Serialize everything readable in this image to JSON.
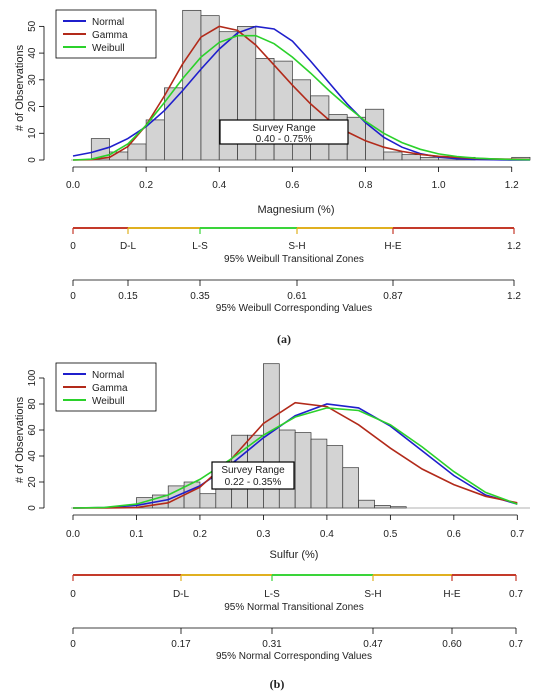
{
  "panels": [
    {
      "panel_label": "(a)",
      "chart_data": {
        "type": "bar",
        "title": "",
        "xlabel": "Magnesium (%)",
        "ylabel": "# of Observations",
        "xlim": [
          0.0,
          1.25
        ],
        "ylim": [
          0,
          55
        ],
        "xticks": [
          "0.0",
          "0.2",
          "0.4",
          "0.6",
          "0.8",
          "1.0",
          "1.2"
        ],
        "yticks": [
          "0",
          "10",
          "20",
          "30",
          "40",
          "50"
        ],
        "bin_width": 0.05,
        "bin_starts": [
          0.05,
          0.1,
          0.15,
          0.2,
          0.25,
          0.3,
          0.35,
          0.4,
          0.45,
          0.5,
          0.55,
          0.6,
          0.65,
          0.7,
          0.75,
          0.8,
          0.85,
          0.9,
          0.95,
          1.0,
          1.05,
          1.1,
          1.15,
          1.2
        ],
        "values": [
          8,
          3,
          6,
          15,
          27,
          56,
          54,
          48,
          50,
          38,
          37,
          30,
          24,
          17,
          16,
          19,
          3,
          2,
          1,
          1,
          1,
          0,
          0,
          1
        ],
        "legend": {
          "position": "top-left",
          "entries": [
            "Normal",
            "Gamma",
            "Weibull"
          ]
        },
        "series": [
          {
            "name": "Normal",
            "color": "#1f1fcc",
            "x": [
              0.0,
              0.05,
              0.1,
              0.15,
              0.2,
              0.25,
              0.3,
              0.35,
              0.4,
              0.45,
              0.5,
              0.55,
              0.6,
              0.65,
              0.7,
              0.75,
              0.8,
              0.85,
              0.9,
              0.95,
              1.0,
              1.05,
              1.1,
              1.15,
              1.2,
              1.25
            ],
            "y": [
              1.5,
              2.8,
              4.8,
              8,
              12.5,
              18.5,
              26,
              34,
              41.5,
              47.5,
              50,
              49,
              44.5,
              37,
              29,
              21,
              14,
              8.5,
              4.8,
              2.4,
              1.1,
              0.5,
              0.2,
              0.1,
              0,
              0
            ]
          },
          {
            "name": "Gamma",
            "color": "#b22a1a",
            "x": [
              0.0,
              0.05,
              0.1,
              0.15,
              0.2,
              0.25,
              0.3,
              0.35,
              0.4,
              0.45,
              0.5,
              0.55,
              0.6,
              0.65,
              0.7,
              0.75,
              0.8,
              0.85,
              0.9,
              0.95,
              1.0,
              1.05,
              1.1,
              1.15,
              1.2,
              1.25
            ],
            "y": [
              0,
              0.1,
              1,
              5,
              13,
              24,
              36,
              46,
              50,
              48.5,
              43,
              35.5,
              28,
              21,
              15,
              10.5,
              7.2,
              4.8,
              3.2,
              2.1,
              1.4,
              1,
              0.6,
              0.4,
              0.3,
              0.2
            ]
          },
          {
            "name": "Weibull",
            "color": "#2bd12b",
            "x": [
              0.0,
              0.05,
              0.1,
              0.15,
              0.2,
              0.25,
              0.3,
              0.35,
              0.4,
              0.45,
              0.5,
              0.55,
              0.6,
              0.65,
              0.7,
              0.75,
              0.8,
              0.85,
              0.9,
              0.95,
              1.0,
              1.05,
              1.1,
              1.15,
              1.2,
              1.25
            ],
            "y": [
              0,
              0.3,
              2,
              6,
              13,
              21.5,
              30.5,
              38.5,
              44,
              46.5,
              46.5,
              43.5,
              38.5,
              32.5,
              26,
              20,
              14.5,
              10,
              6.5,
              4,
              2.3,
              1.3,
              0.7,
              0.4,
              0.2,
              0.1
            ]
          }
        ],
        "annotation": {
          "title": "Survey Range",
          "range": "0.40 - 0.75%"
        }
      },
      "zones": {
        "caption": "95% Weibull Transitional Zones",
        "labels": [
          "0",
          "D-L",
          "L-S",
          "S-H",
          "H-E",
          "1.2"
        ],
        "segment_colors": [
          "#c43a2a",
          "#e0b020",
          "#3ad43a",
          "#e0b020",
          "#c43a2a"
        ]
      },
      "values_axis": {
        "caption": "95% Weibull Corresponding Values",
        "labels": [
          "0",
          "0.15",
          "0.35",
          "0.61",
          "0.87",
          "1.2"
        ]
      }
    },
    {
      "panel_label": "(b)",
      "chart_data": {
        "type": "bar",
        "title": "",
        "xlabel": "Sulfur (%)",
        "ylabel": "# of Observations",
        "xlim": [
          0.0,
          0.72
        ],
        "ylim": [
          0,
          110
        ],
        "xticks": [
          "0.0",
          "0.1",
          "0.2",
          "0.3",
          "0.4",
          "0.5",
          "0.6",
          "0.7"
        ],
        "yticks": [
          "0",
          "20",
          "40",
          "60",
          "80",
          "100"
        ],
        "bin_width": 0.025,
        "bin_starts": [
          0.1,
          0.125,
          0.15,
          0.175,
          0.2,
          0.225,
          0.25,
          0.275,
          0.3,
          0.325,
          0.35,
          0.375,
          0.4,
          0.425,
          0.45,
          0.475,
          0.5,
          0.525,
          0.55,
          0.575,
          0.6,
          0.625,
          0.65,
          0.675,
          0.7
        ],
        "values": [
          8,
          10,
          17,
          20,
          11,
          35,
          56,
          56,
          111,
          60,
          58,
          53,
          48,
          31,
          6,
          2,
          1,
          0,
          0,
          0,
          0,
          0,
          0,
          0,
          0
        ],
        "legend": {
          "position": "top-left",
          "entries": [
            "Normal",
            "Gamma",
            "Weibull"
          ]
        },
        "series": [
          {
            "name": "Normal",
            "color": "#1f1fcc",
            "x": [
              0.0,
              0.05,
              0.1,
              0.15,
              0.2,
              0.25,
              0.3,
              0.35,
              0.4,
              0.45,
              0.5,
              0.55,
              0.6,
              0.65,
              0.7
            ],
            "y": [
              0,
              0.3,
              2,
              6.5,
              17,
              34,
              54,
              71,
              80,
              77,
              63,
              44,
              25,
              10,
              3
            ]
          },
          {
            "name": "Gamma",
            "color": "#b22a1a",
            "x": [
              0.0,
              0.05,
              0.1,
              0.15,
              0.2,
              0.25,
              0.3,
              0.35,
              0.4,
              0.45,
              0.5,
              0.55,
              0.6,
              0.65,
              0.7
            ],
            "y": [
              0,
              0,
              0.3,
              4,
              16,
              38,
              65,
              81,
              78,
              64,
              46,
              30,
              18,
              9,
              4
            ]
          },
          {
            "name": "Weibull",
            "color": "#2bd12b",
            "x": [
              0.0,
              0.05,
              0.1,
              0.15,
              0.2,
              0.25,
              0.3,
              0.35,
              0.4,
              0.45,
              0.5,
              0.55,
              0.6,
              0.65,
              0.7
            ],
            "y": [
              0,
              0.5,
              3,
              10,
              22,
              38,
              56,
              70,
              77,
              75,
              64,
              47,
              28,
              12,
              3
            ]
          }
        ],
        "annotation": {
          "title": "Survey Range",
          "range": "0.22 - 0.35%"
        }
      },
      "zones": {
        "caption": "95% Normal Transitional Zones",
        "labels": [
          "0",
          "D-L",
          "L-S",
          "S-H",
          "H-E",
          "0.7"
        ],
        "segment_colors": [
          "#c43a2a",
          "#e0b020",
          "#3ad43a",
          "#e0b020",
          "#c43a2a"
        ]
      },
      "values_axis": {
        "caption": "95% Normal Corresponding Values",
        "labels": [
          "0",
          "0.17",
          "0.31",
          "0.47",
          "0.60",
          "0.7"
        ]
      }
    }
  ]
}
